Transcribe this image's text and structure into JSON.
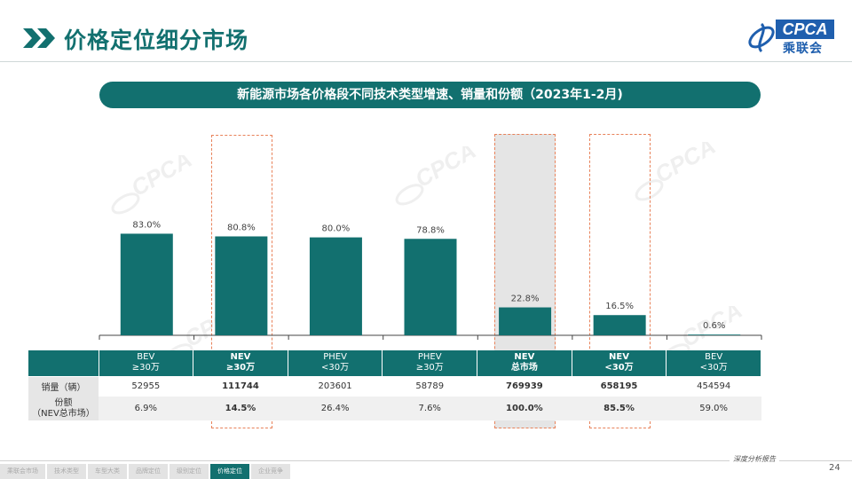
{
  "header": {
    "title": "价格定位细分市场",
    "logo_text": "CPCA",
    "logo_cn": "乘联会"
  },
  "subtitle": "新能源市场各价格段不同技术类型增速、销量和份额（2023年1-2月)",
  "chart_data": {
    "type": "bar",
    "title": "新能源市场各价格段不同技术类型增速、销量和份额（2023年1-2月)",
    "categories": [
      "BEV\n≥30万",
      "NEV\n≥30万",
      "PHEV\n<30万",
      "PHEV\n≥30万",
      "NEV\n总市场",
      "NEV\n<30万",
      "BEV\n<30万"
    ],
    "values": [
      83.0,
      80.8,
      80.0,
      78.8,
      22.8,
      16.5,
      0.6
    ],
    "value_labels": [
      "83.0%",
      "80.8%",
      "80.0%",
      "78.8%",
      "22.8%",
      "16.5%",
      "0.6%"
    ],
    "unit": "%",
    "ylim": [
      0,
      100
    ],
    "highlighted": [
      "NEV\n≥30万",
      "NEV\n总市场",
      "NEV\n<30万"
    ],
    "grid": false,
    "colors": {
      "bar": "#12706f",
      "highlight_border": "#e8825a",
      "highlight_fill": "#a6a6a6"
    }
  },
  "table": {
    "header_cells": [
      {
        "line1": "BEV",
        "line2": "≥30万",
        "bold": false
      },
      {
        "line1": "NEV",
        "line2": "≥30万",
        "bold": true
      },
      {
        "line1": "PHEV",
        "line2": "<30万",
        "bold": false
      },
      {
        "line1": "PHEV",
        "line2": "≥30万",
        "bold": false
      },
      {
        "line1": "NEV",
        "line2": "总市场",
        "bold": true
      },
      {
        "line1": "NEV",
        "line2": "<30万",
        "bold": true
      },
      {
        "line1": "BEV",
        "line2": "<30万",
        "bold": false
      }
    ],
    "rows": [
      {
        "label": "销量（辆）",
        "values": [
          "52955",
          "111744",
          "203601",
          "58789",
          "769939",
          "658195",
          "454594"
        ]
      },
      {
        "label": "份额\n（NEV总市场）",
        "values": [
          "6.9%",
          "14.5%",
          "26.4%",
          "7.6%",
          "100.0%",
          "85.5%",
          "59.0%"
        ]
      }
    ]
  },
  "footer": {
    "slogan": "深度分析报告",
    "page_number": "24",
    "nav_tabs": [
      "乘联会市场",
      "技术类型",
      "车型大类",
      "品牌定位",
      "级别定位",
      "价格定位",
      "企业竞争"
    ],
    "active_tab": "价格定位"
  },
  "colors": {
    "brand": "#12706f",
    "logo_blue": "#1f5fae"
  }
}
